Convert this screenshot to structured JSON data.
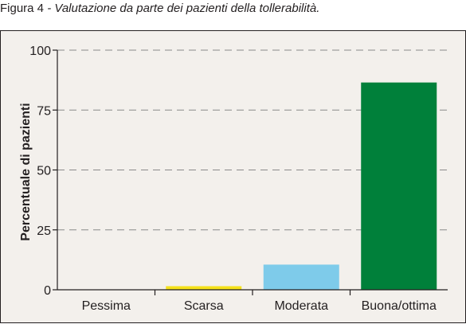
{
  "caption": {
    "prefix": "Figura 4",
    "separator": " - ",
    "text": "Valutazione da parte dei pazienti della tollerabilità."
  },
  "chart_data": {
    "type": "bar",
    "title": "",
    "xlabel": "",
    "ylabel": "Percentuale di pazienti",
    "categories": [
      "Pessima",
      "Scarsa",
      "Moderata",
      "Buona/ottima"
    ],
    "values": [
      0,
      1.5,
      10.5,
      86.5
    ],
    "colors": [
      "#c9c9c9",
      "#f5e21b",
      "#7ecbea",
      "#00803a"
    ],
    "ylim": [
      0,
      100
    ],
    "yticks": [
      0,
      25,
      50,
      75,
      100
    ],
    "grid": true,
    "legend": "none"
  }
}
